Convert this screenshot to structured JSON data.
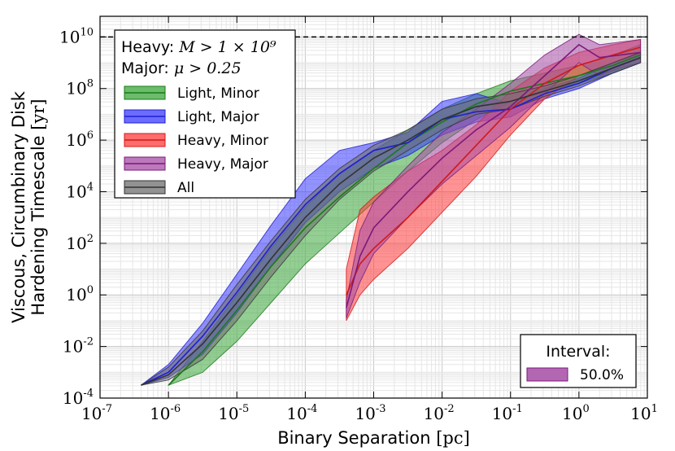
{
  "chart_data": {
    "type": "area",
    "x_scale": "log",
    "y_scale": "log",
    "xlabel": "Binary Separation",
    "xlabel_unit": "[pc]",
    "ylabel_line1": "Viscous, Circumbinary Disk",
    "ylabel_line2": "Hardening Timescale",
    "ylabel_unit": "[yr]",
    "xlim_log10": [
      -7,
      1
    ],
    "ylim_log10": [
      -4,
      10.8
    ],
    "x_ticks": [
      {
        "base": "10",
        "exp": "-7",
        "log": -7
      },
      {
        "base": "10",
        "exp": "-6",
        "log": -6
      },
      {
        "base": "10",
        "exp": "-5",
        "log": -5
      },
      {
        "base": "10",
        "exp": "-4",
        "log": -4
      },
      {
        "base": "10",
        "exp": "-3",
        "log": -3
      },
      {
        "base": "10",
        "exp": "-2",
        "log": -2
      },
      {
        "base": "10",
        "exp": "-1",
        "log": -1
      },
      {
        "base": "10",
        "exp": "0",
        "log": 0
      },
      {
        "base": "10",
        "exp": "1",
        "log": 1
      }
    ],
    "y_ticks": [
      {
        "base": "10",
        "exp": "-4",
        "log": -4
      },
      {
        "base": "10",
        "exp": "-2",
        "log": -2
      },
      {
        "base": "10",
        "exp": "0",
        "log": 0
      },
      {
        "base": "10",
        "exp": "2",
        "log": 2
      },
      {
        "base": "10",
        "exp": "4",
        "log": 4
      },
      {
        "base": "10",
        "exp": "6",
        "log": 6
      },
      {
        "base": "10",
        "exp": "8",
        "log": 8
      },
      {
        "base": "10",
        "exp": "10",
        "log": 10
      }
    ],
    "hubble_line_log10": 10,
    "grid": true,
    "info_box": {
      "heavy_label": "Heavy:",
      "heavy_math": "M > 1 × 10⁹",
      "major_label": "Major:",
      "major_math": "μ > 0.25"
    },
    "legend_position": "upper-left",
    "interval_box": {
      "title": "Interval:",
      "label": "50.0%",
      "color": "#a64ca6"
    },
    "series": [
      {
        "name": "Light, Minor",
        "fill": "#3aa63a",
        "line": "#1a7a1a",
        "x_log": [
          -6,
          -5.5,
          -5,
          -4.5,
          -4,
          -3.5,
          -3,
          -2.5,
          -2,
          -1.5,
          -1,
          -0.5,
          0,
          0.5,
          0.9
        ],
        "median_log": [
          -3.5,
          -2.2,
          -0.6,
          1.1,
          2.6,
          3.8,
          4.9,
          5.9,
          6.7,
          7.4,
          7.9,
          8.2,
          8.5,
          8.9,
          9.3
        ],
        "lower_log": [
          -3.5,
          -3.0,
          -1.8,
          -0.3,
          1.2,
          2.4,
          3.6,
          4.8,
          5.9,
          6.8,
          7.5,
          7.9,
          8.2,
          8.6,
          9.0
        ],
        "upper_log": [
          -3.5,
          -1.8,
          0.0,
          1.8,
          3.4,
          4.7,
          5.6,
          6.4,
          7.2,
          7.8,
          8.3,
          8.6,
          8.9,
          9.3,
          9.7
        ]
      },
      {
        "name": "Light, Major",
        "fill": "#3b3bff",
        "line": "#1f1fd0",
        "x_log": [
          -6.4,
          -6,
          -5.5,
          -5,
          -4.5,
          -4,
          -3.5,
          -3,
          -2.5,
          -2,
          -1.5,
          -1,
          -0.5,
          0,
          0.5,
          0.9
        ],
        "median_log": [
          -3.5,
          -3.0,
          -1.6,
          0.1,
          1.9,
          3.5,
          4.7,
          5.6,
          5.9,
          6.8,
          7.1,
          7.2,
          7.8,
          8.2,
          8.8,
          9.2
        ],
        "lower_log": [
          -3.5,
          -3.2,
          -2.3,
          -0.7,
          1.1,
          2.8,
          4.0,
          4.9,
          5.4,
          6.2,
          6.7,
          6.9,
          7.6,
          8.0,
          8.6,
          9.0
        ],
        "upper_log": [
          -3.5,
          -2.7,
          -1.1,
          0.8,
          2.7,
          4.5,
          5.6,
          5.9,
          6.3,
          7.5,
          7.8,
          7.4,
          8.0,
          8.4,
          9.0,
          9.4
        ]
      },
      {
        "name": "Heavy, Minor",
        "fill": "#ff3b3b",
        "line": "#d01a1a",
        "x_log": [
          -3.4,
          -3.2,
          -3,
          -2.5,
          -2,
          -1.5,
          -1,
          -0.5,
          0,
          0.5,
          0.9
        ],
        "median_log": [
          0.0,
          1.2,
          1.8,
          3.0,
          4.4,
          5.8,
          7.2,
          8.2,
          8.9,
          9.3,
          9.6
        ],
        "lower_log": [
          -1.0,
          0.0,
          0.6,
          1.8,
          3.2,
          4.6,
          6.2,
          7.6,
          8.5,
          9.0,
          9.3
        ],
        "upper_log": [
          1.0,
          3.3,
          3.8,
          4.8,
          5.6,
          6.6,
          7.9,
          8.8,
          9.4,
          9.7,
          9.9
        ]
      },
      {
        "name": "Heavy, Major",
        "fill": "#a64ca6",
        "line": "#7a1a7a",
        "x_log": [
          -3.4,
          -3.2,
          -3,
          -2.5,
          -2,
          -1.5,
          -1,
          -0.5,
          0,
          0.3,
          0.6,
          0.9
        ],
        "median_log": [
          -0.5,
          1.5,
          2.6,
          4.0,
          5.3,
          6.4,
          7.3,
          8.5,
          9.7,
          9.2,
          9.3,
          9.4
        ],
        "lower_log": [
          -0.9,
          0.5,
          1.6,
          3.0,
          4.3,
          5.4,
          6.5,
          7.8,
          9.0,
          8.5,
          8.8,
          9.0
        ],
        "upper_log": [
          -0.2,
          2.5,
          3.6,
          5.0,
          6.3,
          7.2,
          8.2,
          9.3,
          10.1,
          9.7,
          9.8,
          9.9
        ]
      },
      {
        "name": "All",
        "fill": "#6e6e6e",
        "line": "#333333",
        "x_log": [
          -6.4,
          -6,
          -5.5,
          -5,
          -4.5,
          -4,
          -3.5,
          -3,
          -2.5,
          -2,
          -1.5,
          -1,
          -0.5,
          0,
          0.5,
          0.9
        ],
        "median_log": [
          -3.5,
          -3.1,
          -1.9,
          -0.3,
          1.4,
          3.0,
          4.3,
          5.3,
          6.0,
          6.8,
          7.3,
          7.5,
          7.9,
          8.3,
          8.8,
          9.2
        ],
        "lower_log": [
          -3.5,
          -3.3,
          -2.5,
          -1.0,
          0.7,
          2.3,
          3.7,
          4.8,
          5.6,
          6.4,
          7.0,
          7.2,
          7.7,
          8.1,
          8.6,
          9.0
        ],
        "upper_log": [
          -3.5,
          -2.8,
          -1.4,
          0.4,
          2.1,
          3.7,
          4.9,
          5.8,
          6.4,
          7.2,
          7.6,
          7.8,
          8.1,
          8.5,
          9.0,
          9.4
        ]
      }
    ]
  }
}
